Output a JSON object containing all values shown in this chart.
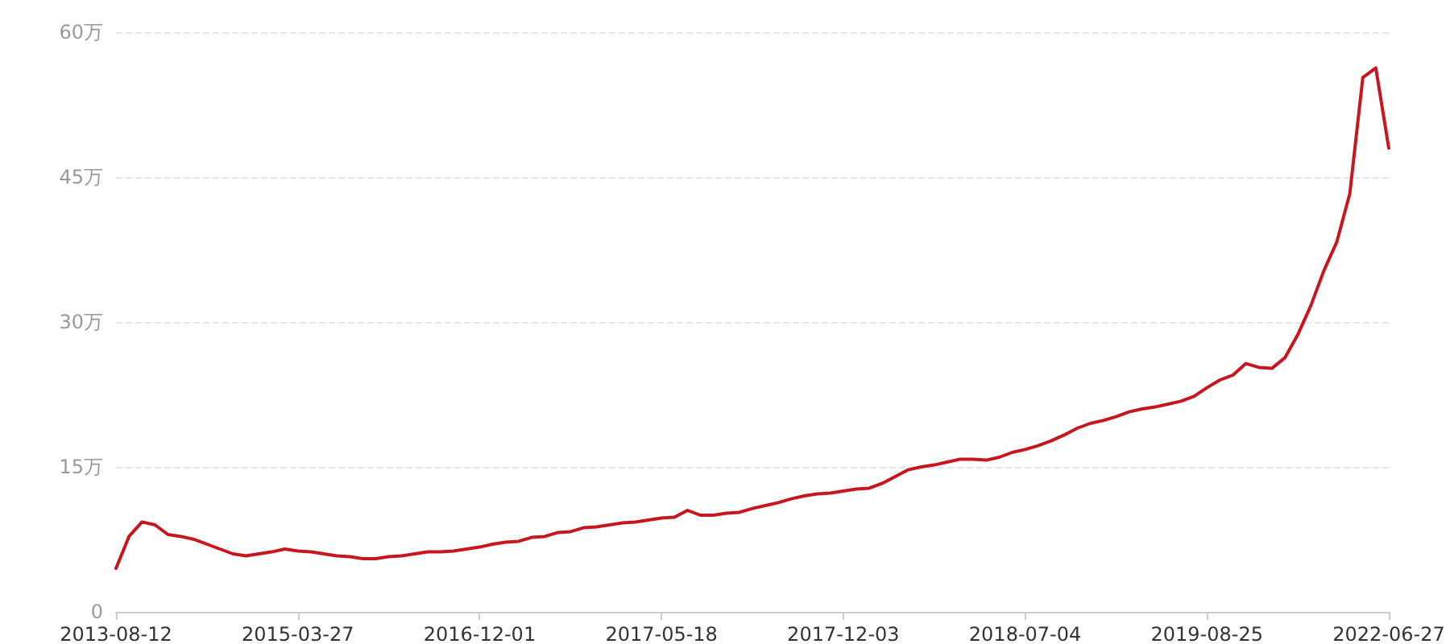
{
  "chart_data": {
    "type": "line",
    "categories": [
      "2013-08-12",
      null,
      null,
      null,
      null,
      null,
      null,
      null,
      null,
      null,
      null,
      null,
      null,
      null,
      "2015-03-27",
      null,
      null,
      null,
      null,
      null,
      null,
      null,
      null,
      null,
      null,
      null,
      null,
      null,
      "2016-12-01",
      null,
      null,
      null,
      null,
      null,
      null,
      null,
      null,
      null,
      null,
      null,
      null,
      null,
      "2017-05-18",
      null,
      null,
      null,
      null,
      null,
      null,
      null,
      null,
      null,
      null,
      null,
      null,
      null,
      "2017-12-03",
      null,
      null,
      null,
      null,
      null,
      null,
      null,
      null,
      null,
      null,
      null,
      null,
      null,
      "2018-07-04",
      null,
      null,
      null,
      null,
      null,
      null,
      null,
      null,
      null,
      null,
      null,
      null,
      null,
      "2019-08-25",
      null,
      null,
      null,
      null,
      null,
      null,
      null,
      null,
      null,
      null,
      null,
      null,
      null,
      "2022-06-27"
    ],
    "series": [
      {
        "color": "#c8161e",
        "values": [
          4.5,
          7.8,
          9.3,
          9.0,
          8.0,
          7.8,
          7.5,
          7.0,
          6.5,
          6.0,
          5.8,
          6.0,
          6.2,
          6.5,
          6.3,
          6.2,
          6.0,
          5.8,
          5.7,
          5.5,
          5.5,
          5.7,
          5.8,
          6.0,
          6.2,
          6.2,
          6.3,
          6.5,
          6.7,
          7.0,
          7.2,
          7.3,
          7.7,
          7.8,
          8.2,
          8.3,
          8.7,
          8.8,
          9.0,
          9.2,
          9.3,
          9.5,
          9.7,
          9.8,
          10.5,
          10.0,
          10.0,
          10.2,
          10.3,
          10.7,
          11.0,
          11.3,
          11.7,
          12.0,
          12.2,
          12.3,
          12.5,
          12.7,
          12.8,
          13.3,
          14.0,
          14.7,
          15.0,
          15.2,
          15.5,
          15.8,
          15.8,
          15.7,
          16.0,
          16.5,
          16.8,
          17.2,
          17.7,
          18.3,
          19.0,
          19.5,
          19.8,
          20.2,
          20.7,
          21.0,
          21.2,
          21.5,
          21.8,
          22.3,
          23.2,
          24.0,
          24.5,
          25.7,
          25.3,
          25.2,
          26.3,
          28.7,
          31.7,
          35.3,
          38.3,
          43.3,
          55.3,
          56.3,
          48.0
        ]
      }
    ],
    "ylim": [
      0,
      60
    ],
    "yticks": [
      0,
      {
        "value": 15,
        "label": "15万"
      },
      {
        "value": 30,
        "label": "30万"
      },
      {
        "value": 45,
        "label": "45万"
      },
      {
        "value": 60,
        "label": "60万"
      }
    ],
    "grid": "y",
    "marker": "none",
    "line_style": "solid"
  }
}
